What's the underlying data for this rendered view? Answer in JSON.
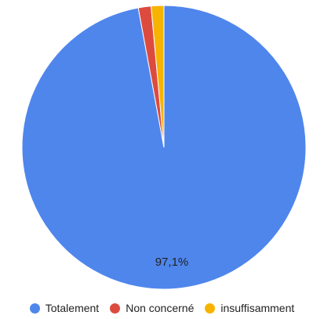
{
  "chart_data": {
    "type": "pie",
    "slices": [
      {
        "label": "Totalement",
        "value": 97.1,
        "color": "#4F86EC",
        "data_label": "97,1%"
      },
      {
        "label": "Non concerné",
        "value": 1.45,
        "color": "#DD4B3E",
        "data_label": ""
      },
      {
        "label": "insuffisamment",
        "value": 1.45,
        "color": "#F6B400",
        "data_label": ""
      }
    ],
    "legend_position": "bottom"
  }
}
